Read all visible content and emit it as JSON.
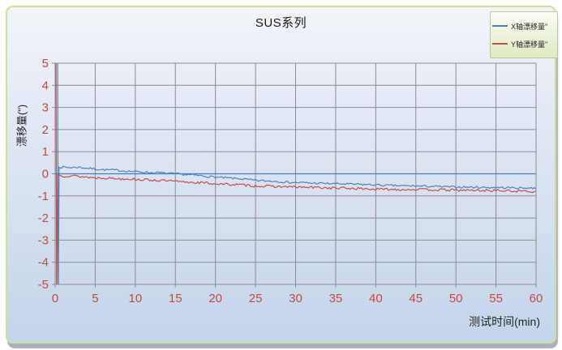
{
  "chart_data": {
    "type": "line",
    "title": "SUS系列",
    "xlabel": "测试时间(min)",
    "ylabel": "漂移量(\")",
    "xlim": [
      0,
      60
    ],
    "ylim": [
      -5,
      5
    ],
    "x_ticks": [
      0,
      5,
      10,
      15,
      20,
      25,
      30,
      35,
      40,
      45,
      50,
      55,
      60
    ],
    "y_ticks": [
      5,
      4,
      3,
      2,
      1,
      0,
      -1,
      -2,
      -3,
      -4,
      -5
    ],
    "grid": true,
    "legend_position": "top-right",
    "tick_label_color": "#bf4b44",
    "grid_color": "#8b8d95",
    "zero_axis_color": "#4a7ebb",
    "anchor_x": [
      1,
      2,
      3,
      4,
      5,
      6,
      7,
      8,
      9,
      10,
      11,
      12,
      13,
      14,
      15,
      16,
      17,
      18,
      19,
      20,
      21,
      22,
      23,
      24,
      25,
      26,
      27,
      28,
      29,
      30,
      31,
      32,
      33,
      34,
      35,
      36,
      37,
      38,
      39,
      40,
      41,
      42,
      43,
      44,
      45,
      46,
      47,
      48,
      49,
      50,
      51,
      52,
      53,
      54,
      55,
      56,
      57,
      58,
      59,
      60
    ],
    "series": [
      {
        "name": "X轴漂移量\"",
        "color": "#4f81bd",
        "startup_spike": [
          [
            0.3,
            6
          ],
          [
            0.38,
            -6
          ],
          [
            0.5,
            0.3
          ]
        ],
        "values": [
          0.3,
          0.28,
          0.3,
          0.25,
          0.22,
          0.18,
          0.18,
          0.15,
          0.12,
          0.1,
          0.08,
          0.05,
          0.05,
          0.02,
          0.0,
          -0.03,
          -0.05,
          -0.08,
          -0.12,
          -0.15,
          -0.18,
          -0.2,
          -0.22,
          -0.26,
          -0.3,
          -0.32,
          -0.33,
          -0.35,
          -0.38,
          -0.4,
          -0.4,
          -0.42,
          -0.43,
          -0.44,
          -0.45,
          -0.46,
          -0.47,
          -0.48,
          -0.49,
          -0.5,
          -0.52,
          -0.53,
          -0.54,
          -0.55,
          -0.55,
          -0.56,
          -0.57,
          -0.58,
          -0.59,
          -0.6,
          -0.6,
          -0.61,
          -0.61,
          -0.62,
          -0.62,
          -0.63,
          -0.63,
          -0.64,
          -0.64,
          -0.65
        ],
        "noise_amplitude": 0.045,
        "noise_seed": 7
      },
      {
        "name": "Y轴漂移量\"",
        "color": "#c0504d",
        "startup_spike": [
          [
            0.1,
            6
          ],
          [
            0.18,
            -6
          ],
          [
            0.3,
            -0.05
          ]
        ],
        "values": [
          -0.1,
          -0.08,
          -0.12,
          -0.15,
          -0.18,
          -0.18,
          -0.2,
          -0.22,
          -0.22,
          -0.25,
          -0.27,
          -0.28,
          -0.3,
          -0.32,
          -0.35,
          -0.37,
          -0.38,
          -0.4,
          -0.42,
          -0.45,
          -0.47,
          -0.48,
          -0.5,
          -0.52,
          -0.55,
          -0.56,
          -0.57,
          -0.58,
          -0.59,
          -0.6,
          -0.61,
          -0.62,
          -0.62,
          -0.64,
          -0.65,
          -0.65,
          -0.66,
          -0.67,
          -0.68,
          -0.7,
          -0.7,
          -0.7,
          -0.71,
          -0.71,
          -0.7,
          -0.72,
          -0.72,
          -0.73,
          -0.73,
          -0.75,
          -0.74,
          -0.75,
          -0.75,
          -0.76,
          -0.75,
          -0.77,
          -0.78,
          -0.78,
          -0.79,
          -0.8
        ],
        "noise_amplitude": 0.055,
        "noise_seed": 13
      }
    ]
  },
  "colors": {
    "frame_border": "#ccdf9e",
    "background_top": "#f2f4f9",
    "background_bottom": "#c4d4ea",
    "legend_bg_top": "#fbfdf4",
    "legend_bg_bottom": "#dfe9c2",
    "shadow": "#a9b0b7"
  }
}
